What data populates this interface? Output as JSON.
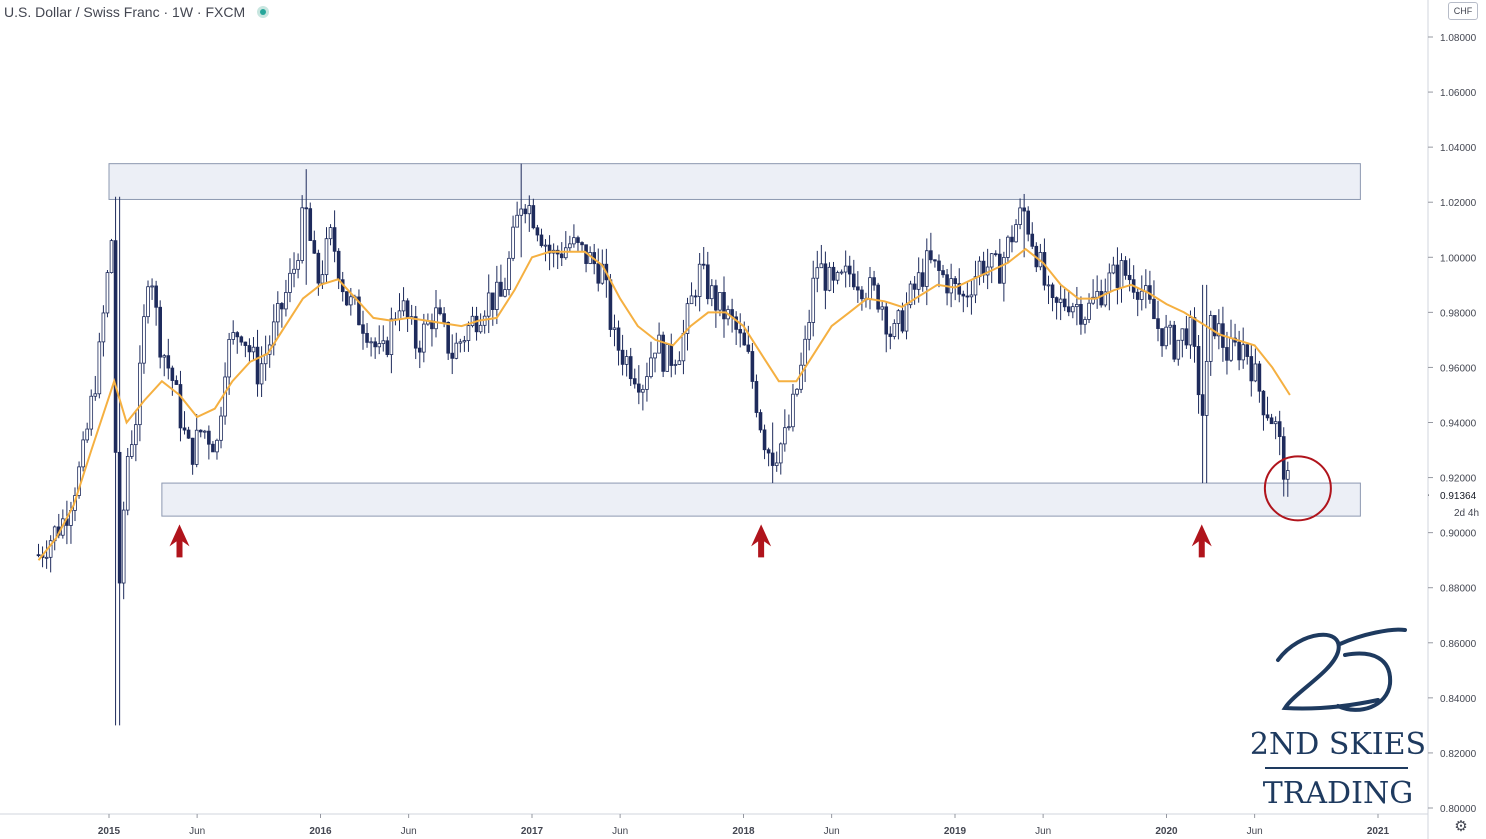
{
  "header": {
    "title": "U.S. Dollar / Swiss Franc · 1W · FXCM"
  },
  "currency_button": "CHF",
  "price_axis": {
    "ticks": [
      "1.08000",
      "1.06000",
      "1.04000",
      "1.02000",
      "1.00000",
      "0.98000",
      "0.96000",
      "0.94000",
      "0.92000",
      "0.90000",
      "0.88000",
      "0.86000",
      "0.84000",
      "0.82000",
      "0.80000"
    ],
    "last_price": "0.91364",
    "countdown": "2d 4h"
  },
  "time_axis": {
    "labels": [
      "2015",
      "Jun",
      "2016",
      "Jun",
      "2017",
      "Jun",
      "2018",
      "Jun",
      "2019",
      "Jun",
      "2020",
      "Jun",
      "2021"
    ]
  },
  "logo": {
    "line1": "2ND SKIES",
    "line2": "TRADING"
  },
  "colors": {
    "candle": "#1e2b5c",
    "moving_average": "#f5b041",
    "zone_fill": "#dfe5f0",
    "zone_border": "#8c98b0",
    "arrow": "#b0141c",
    "circle": "#b0141c",
    "logo": "#1e3a5f"
  },
  "chart_data": {
    "type": "candlestick",
    "symbol": "U.S. Dollar / Swiss Franc",
    "interval": "1W",
    "source": "FXCM",
    "ylim": [
      0.795,
      1.088
    ],
    "x_range": [
      "2014-09",
      "2021-02"
    ],
    "x_ticks": [
      {
        "date": "2015-01",
        "label": "2015"
      },
      {
        "date": "2015-06",
        "label": "Jun"
      },
      {
        "date": "2016-01",
        "label": "2016"
      },
      {
        "date": "2016-06",
        "label": "Jun"
      },
      {
        "date": "2017-01",
        "label": "2017"
      },
      {
        "date": "2017-06",
        "label": "Jun"
      },
      {
        "date": "2018-01",
        "label": "2018"
      },
      {
        "date": "2018-06",
        "label": "Jun"
      },
      {
        "date": "2019-01",
        "label": "2019"
      },
      {
        "date": "2019-06",
        "label": "Jun"
      },
      {
        "date": "2020-01",
        "label": "2020"
      },
      {
        "date": "2020-06",
        "label": "Jun"
      },
      {
        "date": "2021-01",
        "label": "2021"
      }
    ],
    "close_path": [
      [
        "2014-09-01",
        0.892
      ],
      [
        "2014-10-15",
        0.905
      ],
      [
        "2014-11-15",
        0.925
      ],
      [
        "2014-12-15",
        0.965
      ],
      [
        "2015-01-08",
        1.012
      ],
      [
        "2015-01-16",
        0.861
      ],
      [
        "2015-01-30",
        0.925
      ],
      [
        "2015-02-20",
        0.945
      ],
      [
        "2015-03-10",
        1.002
      ],
      [
        "2015-03-25",
        0.972
      ],
      [
        "2015-04-20",
        0.955
      ],
      [
        "2015-05-10",
        0.935
      ],
      [
        "2015-05-20",
        0.928
      ],
      [
        "2015-06-10",
        0.938
      ],
      [
        "2015-07-05",
        0.932
      ],
      [
        "2015-07-20",
        0.965
      ],
      [
        "2015-08-15",
        0.975
      ],
      [
        "2015-09-15",
        0.958
      ],
      [
        "2015-10-15",
        0.975
      ],
      [
        "2015-11-15",
        0.995
      ],
      [
        "2015-12-05",
        1.018
      ],
      [
        "2015-12-25",
        0.99
      ],
      [
        "2016-01-20",
        1.008
      ],
      [
        "2016-02-15",
        0.985
      ],
      [
        "2016-03-20",
        0.975
      ],
      [
        "2016-04-15",
        0.962
      ],
      [
        "2016-05-15",
        0.985
      ],
      [
        "2016-06-15",
        0.968
      ],
      [
        "2016-07-15",
        0.98
      ],
      [
        "2016-08-15",
        0.965
      ],
      [
        "2016-09-15",
        0.975
      ],
      [
        "2016-10-15",
        0.985
      ],
      [
        "2016-11-10",
        0.985
      ],
      [
        "2016-12-15",
        1.023
      ],
      [
        "2017-01-05",
        1.015
      ],
      [
        "2017-02-05",
        1.0
      ],
      [
        "2017-03-05",
        1.005
      ],
      [
        "2017-04-05",
        1.0
      ],
      [
        "2017-05-01",
        0.995
      ],
      [
        "2017-05-20",
        0.97
      ],
      [
        "2017-06-15",
        0.962
      ],
      [
        "2017-07-10",
        0.955
      ],
      [
        "2017-08-01",
        0.97
      ],
      [
        "2017-08-20",
        0.962
      ],
      [
        "2017-09-15",
        0.968
      ],
      [
        "2017-10-15",
        0.995
      ],
      [
        "2017-11-10",
        0.985
      ],
      [
        "2017-12-15",
        0.975
      ],
      [
        "2018-01-10",
        0.962
      ],
      [
        "2018-02-05",
        0.935
      ],
      [
        "2018-02-20",
        0.928
      ],
      [
        "2018-03-15",
        0.935
      ],
      [
        "2018-04-15",
        0.965
      ],
      [
        "2018-05-05",
        0.998
      ],
      [
        "2018-06-05",
        0.988
      ],
      [
        "2018-07-05",
        0.995
      ],
      [
        "2018-08-05",
        0.988
      ],
      [
        "2018-08-25",
        0.985
      ],
      [
        "2018-09-15",
        0.97
      ],
      [
        "2018-10-15",
        0.985
      ],
      [
        "2018-11-15",
        0.998
      ],
      [
        "2018-12-15",
        0.992
      ],
      [
        "2019-01-15",
        0.985
      ],
      [
        "2019-02-15",
        0.998
      ],
      [
        "2019-03-15",
        0.995
      ],
      [
        "2019-04-15",
        1.012
      ],
      [
        "2019-04-28",
        1.017
      ],
      [
        "2019-05-20",
        1.002
      ],
      [
        "2019-06-15",
        0.98
      ],
      [
        "2019-07-15",
        0.985
      ],
      [
        "2019-08-15",
        0.98
      ],
      [
        "2019-09-15",
        0.99
      ],
      [
        "2019-10-15",
        0.995
      ],
      [
        "2019-11-15",
        0.99
      ],
      [
        "2019-12-15",
        0.975
      ],
      [
        "2020-01-15",
        0.968
      ],
      [
        "2020-02-10",
        0.975
      ],
      [
        "2020-03-05",
        0.94
      ],
      [
        "2020-03-12",
        0.968
      ],
      [
        "2020-03-20",
        0.978
      ],
      [
        "2020-04-15",
        0.965
      ],
      [
        "2020-05-15",
        0.968
      ],
      [
        "2020-06-15",
        0.948
      ],
      [
        "2020-07-05",
        0.94
      ],
      [
        "2020-07-20",
        0.925
      ],
      [
        "2020-08-01",
        0.913
      ]
    ],
    "moving_average_path": [
      [
        "2014-09-01",
        0.89
      ],
      [
        "2014-10-01",
        0.898
      ],
      [
        "2014-11-01",
        0.91
      ],
      [
        "2014-12-01",
        0.93
      ],
      [
        "2015-01-10",
        0.955
      ],
      [
        "2015-02-01",
        0.94
      ],
      [
        "2015-03-01",
        0.948
      ],
      [
        "2015-04-01",
        0.955
      ],
      [
        "2015-05-01",
        0.95
      ],
      [
        "2015-06-01",
        0.942
      ],
      [
        "2015-07-01",
        0.945
      ],
      [
        "2015-08-01",
        0.955
      ],
      [
        "2015-09-01",
        0.962
      ],
      [
        "2015-10-01",
        0.965
      ],
      [
        "2015-11-01",
        0.975
      ],
      [
        "2015-12-01",
        0.985
      ],
      [
        "2016-01-01",
        0.99
      ],
      [
        "2016-02-01",
        0.992
      ],
      [
        "2016-03-01",
        0.985
      ],
      [
        "2016-04-01",
        0.978
      ],
      [
        "2016-05-01",
        0.977
      ],
      [
        "2016-06-01",
        0.978
      ],
      [
        "2016-07-01",
        0.977
      ],
      [
        "2016-08-01",
        0.976
      ],
      [
        "2016-09-01",
        0.975
      ],
      [
        "2016-10-01",
        0.977
      ],
      [
        "2016-11-01",
        0.978
      ],
      [
        "2016-12-01",
        0.988
      ],
      [
        "2017-01-01",
        1.0
      ],
      [
        "2017-02-01",
        1.002
      ],
      [
        "2017-03-01",
        1.002
      ],
      [
        "2017-04-01",
        1.002
      ],
      [
        "2017-05-01",
        0.997
      ],
      [
        "2017-06-01",
        0.985
      ],
      [
        "2017-07-01",
        0.975
      ],
      [
        "2017-08-01",
        0.97
      ],
      [
        "2017-09-01",
        0.968
      ],
      [
        "2017-10-01",
        0.975
      ],
      [
        "2017-11-01",
        0.98
      ],
      [
        "2017-12-01",
        0.98
      ],
      [
        "2018-01-01",
        0.975
      ],
      [
        "2018-02-01",
        0.965
      ],
      [
        "2018-03-01",
        0.955
      ],
      [
        "2018-04-01",
        0.955
      ],
      [
        "2018-05-01",
        0.965
      ],
      [
        "2018-06-01",
        0.975
      ],
      [
        "2018-07-01",
        0.98
      ],
      [
        "2018-08-01",
        0.985
      ],
      [
        "2018-09-01",
        0.984
      ],
      [
        "2018-10-01",
        0.982
      ],
      [
        "2018-11-01",
        0.986
      ],
      [
        "2018-12-01",
        0.99
      ],
      [
        "2019-01-01",
        0.989
      ],
      [
        "2019-02-01",
        0.992
      ],
      [
        "2019-03-01",
        0.995
      ],
      [
        "2019-04-01",
        0.998
      ],
      [
        "2019-05-01",
        1.003
      ],
      [
        "2019-06-01",
        0.998
      ],
      [
        "2019-07-01",
        0.99
      ],
      [
        "2019-08-01",
        0.985
      ],
      [
        "2019-09-01",
        0.985
      ],
      [
        "2019-10-01",
        0.988
      ],
      [
        "2019-11-01",
        0.99
      ],
      [
        "2019-12-01",
        0.987
      ],
      [
        "2020-01-01",
        0.983
      ],
      [
        "2020-02-01",
        0.98
      ],
      [
        "2020-03-01",
        0.976
      ],
      [
        "2020-04-01",
        0.972
      ],
      [
        "2020-05-01",
        0.97
      ],
      [
        "2020-06-01",
        0.968
      ],
      [
        "2020-07-01",
        0.96
      ],
      [
        "2020-08-01",
        0.95
      ]
    ],
    "wick_extremes": [
      {
        "date": "2015-01-16",
        "low": 0.83,
        "high": 1.022
      },
      {
        "date": "2015-12-05",
        "low": 0.99,
        "high": 1.032
      },
      {
        "date": "2016-12-15",
        "low": 1.0,
        "high": 1.034
      },
      {
        "date": "2018-02-20",
        "low": 0.918,
        "high": 0.94
      },
      {
        "date": "2019-04-28",
        "low": 1.0,
        "high": 1.023
      },
      {
        "date": "2020-03-05",
        "low": 0.918,
        "high": 0.99
      },
      {
        "date": "2020-08-01",
        "low": 0.913,
        "high": 0.925
      }
    ],
    "resistance_zone": {
      "x_start": "2015-01",
      "x_end": "2020-12",
      "y_low": 1.021,
      "y_high": 1.034
    },
    "support_zone": {
      "x_start": "2015-04",
      "x_end": "2020-12",
      "y_low": 0.906,
      "y_high": 0.918
    },
    "arrows": [
      "2015-05",
      "2018-02",
      "2020-03"
    ],
    "highlight_circle": {
      "date": "2020-08",
      "value": 0.915
    },
    "last_value": 0.91364
  }
}
